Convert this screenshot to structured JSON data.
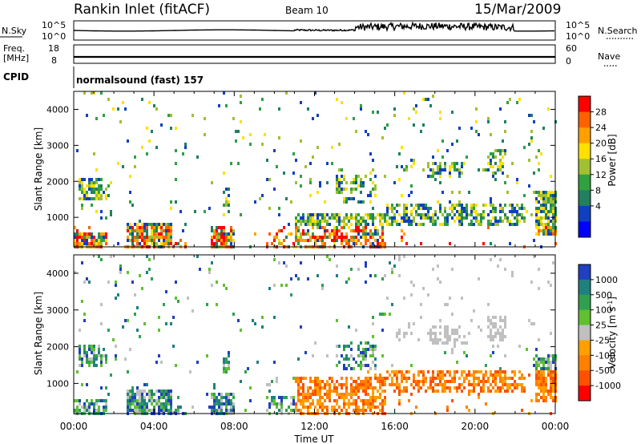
{
  "header": {
    "station": "Rankin Inlet (fitACF)",
    "beam": "Beam 10",
    "date": "15/Mar/2009"
  },
  "noise_panel": {
    "left_label": "N.Sky",
    "left_ticks": [
      "10^5",
      "10^0"
    ],
    "right_label": "N.Search",
    "right_ticks": [
      "10^5",
      "10^0"
    ]
  },
  "freq_panel": {
    "left_label_1": "Freq.",
    "left_label_2": "[MHz]",
    "left_ticks": [
      "18",
      "8"
    ],
    "right_label": "Nave",
    "right_ticks": [
      "60",
      "0"
    ]
  },
  "cpid_panel": {
    "label": "CPID",
    "text": "normalsound (fast) 157"
  },
  "chart_data": [
    {
      "type": "heatmap",
      "name": "power",
      "x_range_hours": [
        0,
        24
      ],
      "xticks": [
        "00:00",
        "04:00",
        "08:00",
        "12:00",
        "16:00",
        "20:00",
        "00:00"
      ],
      "xlabel": "Time UT",
      "ylabel": "Slant Range [km]",
      "ylim": [
        180,
        4500
      ],
      "yticks": [
        1000,
        2000,
        3000,
        4000
      ],
      "colorbar": {
        "label": "Power [dB]",
        "ticks": [
          "28",
          "24",
          "20",
          "16",
          "12",
          "8",
          "4"
        ],
        "colors": [
          "#ff0000",
          "#ff6000",
          "#ffa000",
          "#ffe000",
          "#a0c030",
          "#30a040",
          "#208060",
          "#1040c0",
          "#0000ff"
        ]
      }
    },
    {
      "type": "heatmap",
      "name": "velocity",
      "x_range_hours": [
        0,
        24
      ],
      "xticks": [
        "00:00",
        "04:00",
        "08:00",
        "12:00",
        "16:00",
        "20:00",
        "00:00"
      ],
      "xlabel": "Time UT",
      "ylabel": "Slant Range [km]",
      "ylim": [
        180,
        4500
      ],
      "yticks": [
        1000,
        2000,
        3000,
        4000
      ],
      "colorbar": {
        "label": "Velocity [m s^-1]",
        "ticks": [
          "1000",
          "500",
          "100",
          "25",
          "-25",
          "-100",
          "-500",
          "-1000"
        ],
        "colors": [
          "#2040c0",
          "#208080",
          "#30a050",
          "#60c030",
          "#c0c0c0",
          "#ffa000",
          "#ff8000",
          "#ff5000",
          "#ff0000"
        ]
      }
    }
  ]
}
